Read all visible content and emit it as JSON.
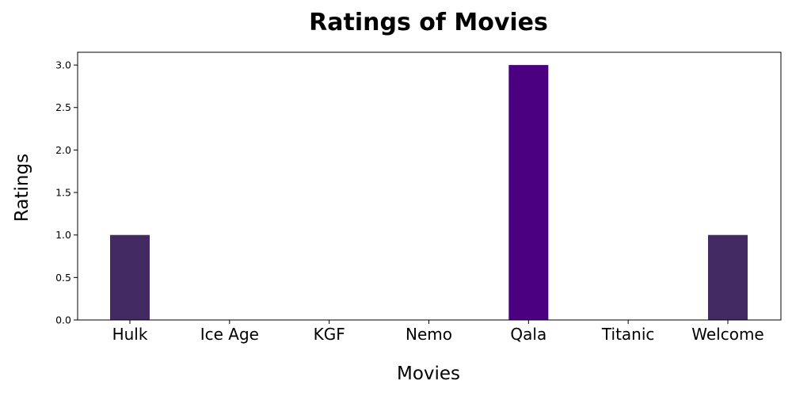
{
  "chart_data": {
    "type": "bar",
    "title": "Ratings of Movies",
    "xlabel": "Movies",
    "ylabel": "Ratings",
    "categories": [
      "Hulk",
      "Ice Age",
      "KGF",
      "Nemo",
      "Qala",
      "Titanic",
      "Welcome"
    ],
    "values": [
      1,
      0,
      0,
      0,
      3,
      0,
      1
    ],
    "colors": [
      "#432a63",
      "#432a63",
      "#432a63",
      "#432a63",
      "#4b0082",
      "#432a63",
      "#432a63"
    ],
    "ylim": [
      0,
      3.15
    ],
    "yticks": [
      "0.0",
      "0.5",
      "1.0",
      "1.5",
      "2.0",
      "2.5",
      "3.0"
    ],
    "grid": false
  }
}
